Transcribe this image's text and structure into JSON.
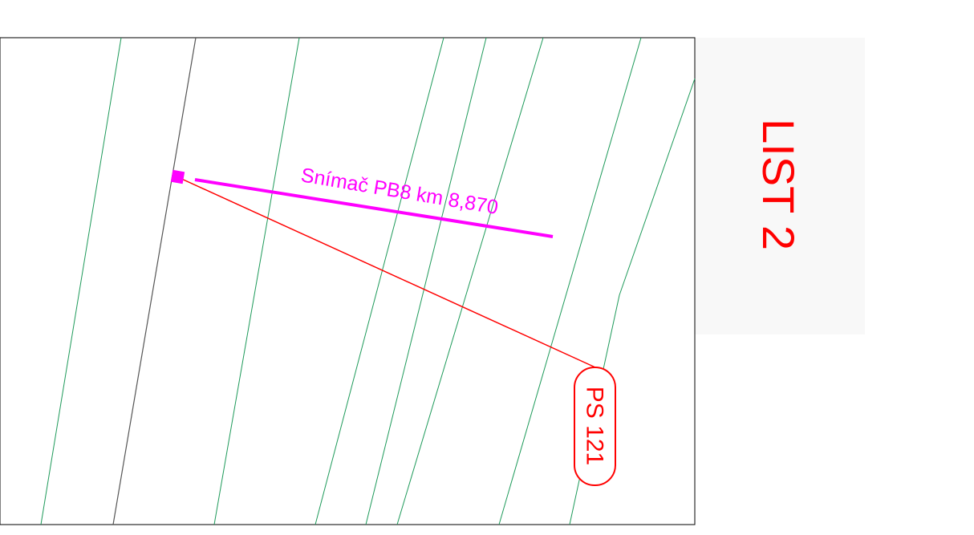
{
  "sheet_label": "LIST 2",
  "sensor": {
    "label": "Snímač PB8 km 8,870",
    "color": "#ff00ff"
  },
  "point": {
    "label": "PS 121",
    "color": "#ff0000"
  },
  "colors": {
    "contour_line": "#1e9a5a",
    "track_axis": "#555555",
    "frame": "#000000",
    "leader": "#ff0000",
    "panel": "#f8f8f8"
  }
}
